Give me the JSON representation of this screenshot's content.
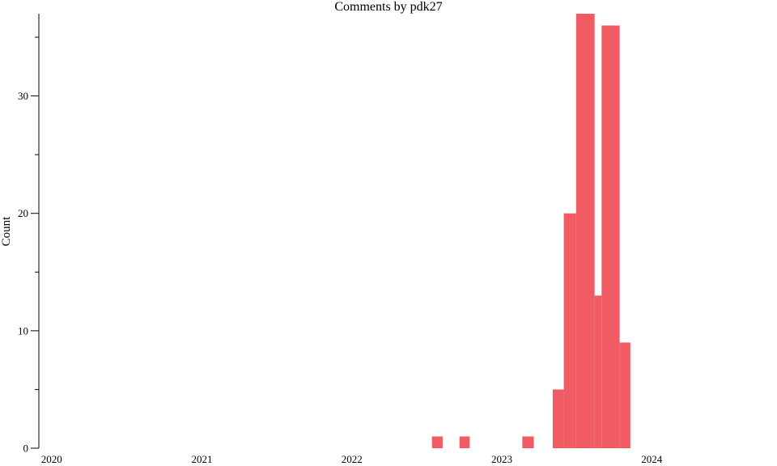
{
  "chart_data": {
    "type": "bar",
    "title": "Comments by pdk27",
    "xlabel": "",
    "ylabel": "Count",
    "xlim": [
      "2019-12-01",
      "2024-11-01"
    ],
    "ylim": [
      0,
      37
    ],
    "y_ticks_major": [
      0,
      10,
      20,
      30
    ],
    "y_ticks_minor": [
      5,
      15,
      25,
      35
    ],
    "x_ticks": [
      "2020",
      "2021",
      "2022",
      "2023",
      "2024"
    ],
    "grid": false,
    "color": "#f15b63",
    "bars": [
      {
        "start": "2022-07-15",
        "end": "2022-08-10",
        "value": 1
      },
      {
        "start": "2022-09-20",
        "end": "2022-10-15",
        "value": 1
      },
      {
        "start": "2023-02-20",
        "end": "2023-03-20",
        "value": 1
      },
      {
        "start": "2023-05-05",
        "end": "2023-06-01",
        "value": 5
      },
      {
        "start": "2023-06-01",
        "end": "2023-07-01",
        "value": 20
      },
      {
        "start": "2023-07-01",
        "end": "2023-08-15",
        "value": 37
      },
      {
        "start": "2023-08-15",
        "end": "2023-09-01",
        "value": 13
      },
      {
        "start": "2023-09-01",
        "end": "2023-10-15",
        "value": 36
      },
      {
        "start": "2023-10-15",
        "end": "2023-11-10",
        "value": 9
      }
    ]
  }
}
